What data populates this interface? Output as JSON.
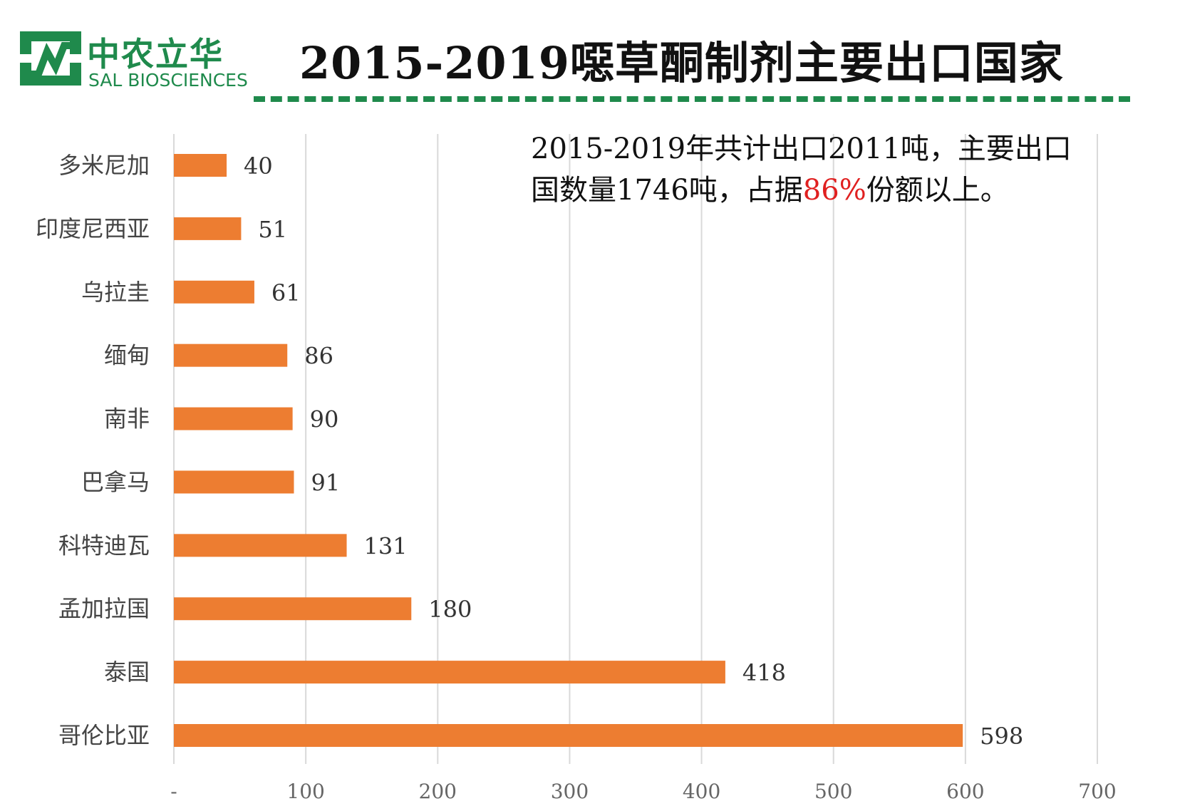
{
  "logo": {
    "name_cn": "中农立华",
    "name_en": "SAL BIOSCIENCES",
    "icon": "sal-logo-icon",
    "color": "#1f8a4c"
  },
  "title": "2015-2019噁草酮制剂主要出口国家",
  "annotation": {
    "line1": "2015-2019年共计出口2011吨，主要出口",
    "line2_pre": "国数量1746吨，占据",
    "line2_highlight": "86%",
    "line2_post": "份额以上。",
    "highlight_color": "#e02020"
  },
  "chart_data": {
    "type": "bar",
    "orientation": "horizontal",
    "categories": [
      "多米尼加",
      "印度尼西亚",
      "乌拉圭",
      "缅甸",
      "南非",
      "巴拿马",
      "科特迪瓦",
      "孟加拉国",
      "泰国",
      "哥伦比亚"
    ],
    "values": [
      40,
      51,
      61,
      86,
      90,
      91,
      131,
      180,
      418,
      598
    ],
    "value_labels": [
      "40",
      "51",
      "61",
      "86",
      "90",
      "91",
      "131",
      "180",
      "418",
      "598"
    ],
    "xlim": [
      0,
      700
    ],
    "x_ticks": [
      0,
      100,
      200,
      300,
      400,
      500,
      600,
      700
    ],
    "x_tick_labels": [
      "-",
      "100",
      "200",
      "300",
      "400",
      "500",
      "600",
      "700"
    ],
    "grid": "vertical",
    "bar_color": "#ed7d31",
    "grid_color": "#d9d9d9"
  }
}
